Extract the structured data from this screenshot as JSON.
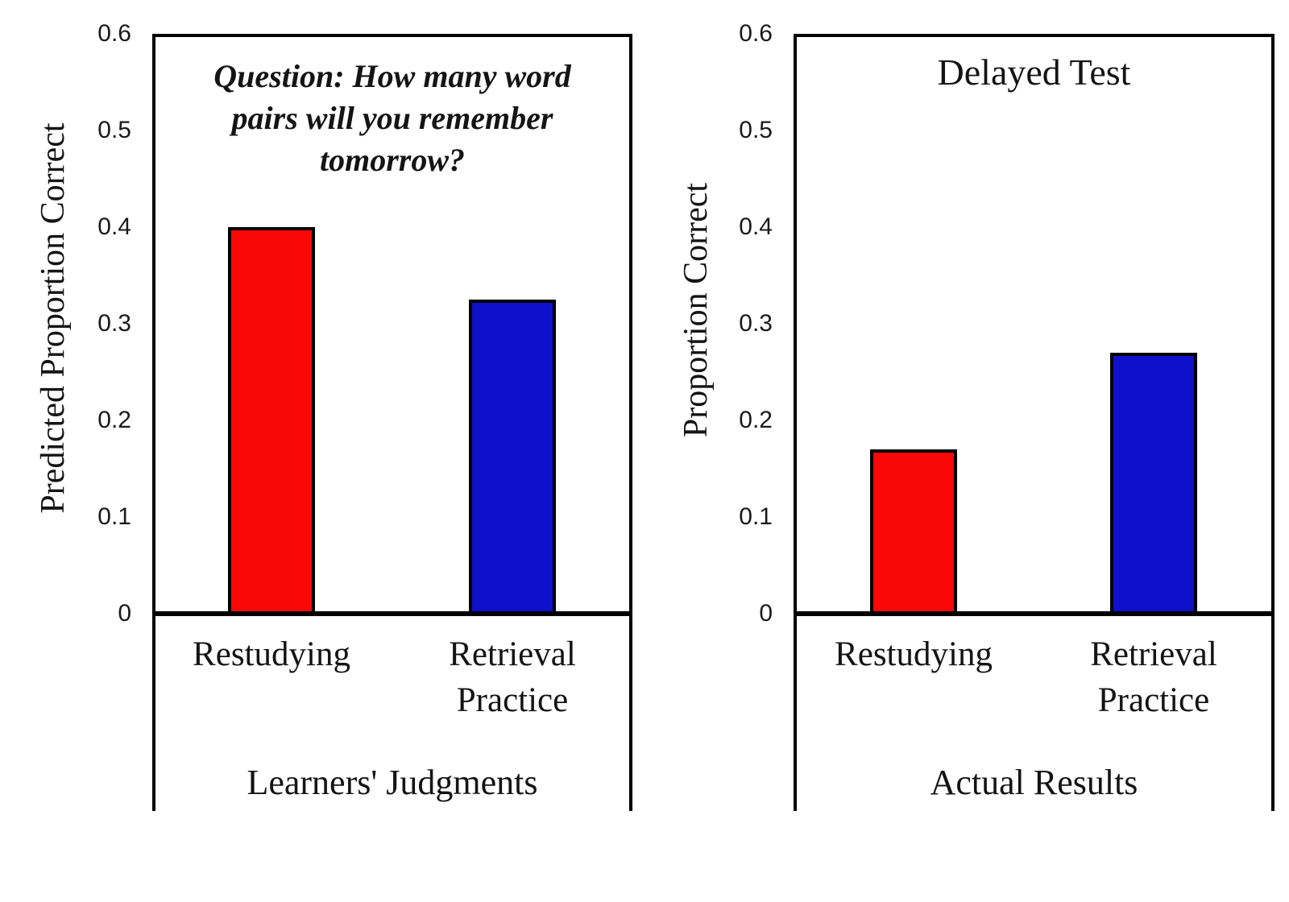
{
  "figure": {
    "description": "Two-panel bar chart comparing learners' predicted memory performance with actual delayed test results for restudying versus retrieval practice"
  },
  "chart_data": [
    {
      "type": "bar",
      "panel": "left",
      "annotation_lines": [
        "Question: How many word",
        "pairs will you remember",
        "tomorrow?"
      ],
      "ylabel": "Predicted Proportion Correct",
      "xlabel": "Learners' Judgments",
      "categories": [
        [
          "Restudying"
        ],
        [
          "Retrieval",
          "Practice"
        ]
      ],
      "values": [
        0.4,
        0.325
      ],
      "bar_colors": [
        "#fa0808",
        "#0f10cc"
      ],
      "yticks": [
        "0",
        "0.1",
        "0.2",
        "0.3",
        "0.4",
        "0.5",
        "0.6"
      ],
      "ylim": [
        0,
        0.6
      ],
      "grid": "off",
      "legend": "none"
    },
    {
      "type": "bar",
      "panel": "right",
      "title": "Delayed Test",
      "ylabel": "Proportion Correct",
      "xlabel": "Actual Results",
      "categories": [
        [
          "Restudying"
        ],
        [
          "Retrieval",
          "Practice"
        ]
      ],
      "values": [
        0.17,
        0.27
      ],
      "bar_colors": [
        "#fa0808",
        "#0f10cc"
      ],
      "yticks": [
        "0",
        "0.1",
        "0.2",
        "0.3",
        "0.4",
        "0.5",
        "0.6"
      ],
      "ylim": [
        0,
        0.6
      ],
      "grid": "off",
      "legend": "none"
    }
  ]
}
